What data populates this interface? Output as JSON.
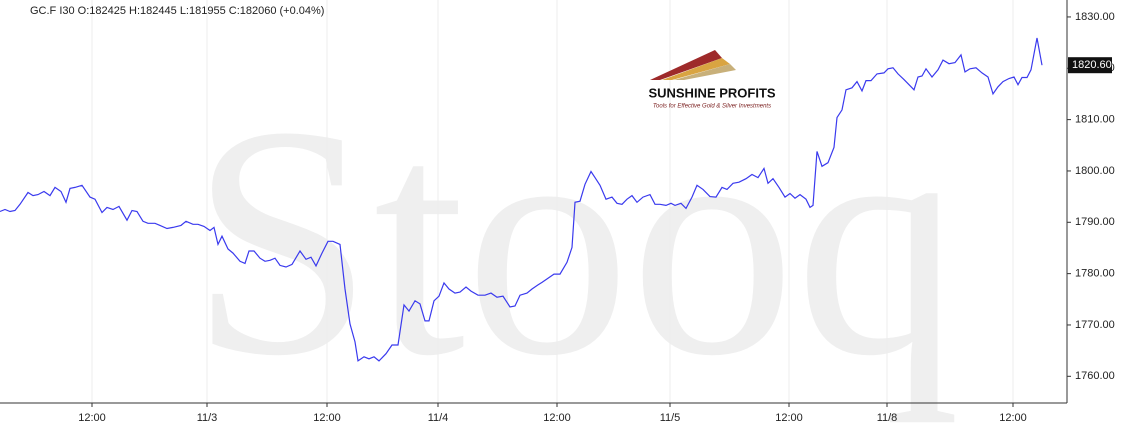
{
  "chart_data": {
    "type": "line",
    "title": "GC.F  I30  O:182425  H:182445  L:181955  C:182060  (+0.04%)",
    "watermark": "Stooq",
    "logo": {
      "name": "SUNSHINE PROFITS",
      "tagline": "Tools for Effective Gold & Silver Investments"
    },
    "last_price_label": "1820.60",
    "grid": true,
    "xlim": [
      0,
      1067
    ],
    "ylim": [
      1754.8,
      1833.3
    ],
    "xticks": [
      {
        "value": 92,
        "label": "12:00"
      },
      {
        "value": 207,
        "label": "11/3"
      },
      {
        "value": 327,
        "label": "12:00"
      },
      {
        "value": 438,
        "label": "11/4"
      },
      {
        "value": 557,
        "label": "12:00"
      },
      {
        "value": 670,
        "label": "11/5"
      },
      {
        "value": 789,
        "label": "12:00"
      },
      {
        "value": 887,
        "label": "11/8"
      },
      {
        "value": 1013,
        "label": "12:00"
      }
    ],
    "yticks": [
      {
        "value": 1760,
        "label": "1760.00"
      },
      {
        "value": 1770,
        "label": "1770.00"
      },
      {
        "value": 1780,
        "label": "1780.00"
      },
      {
        "value": 1790,
        "label": "1790.00"
      },
      {
        "value": 1800,
        "label": "1800.00"
      },
      {
        "value": 1810,
        "label": "1810.00"
      },
      {
        "value": 1820,
        "label": "1820.00"
      },
      {
        "value": 1830,
        "label": "1830.00"
      }
    ],
    "series": [
      {
        "name": "GC.F",
        "color": "#3a3aee",
        "x": [
          0,
          5,
          10,
          15,
          20,
          28,
          33,
          38,
          44,
          50,
          55,
          61,
          66,
          70,
          75,
          82,
          90,
          95,
          102,
          107,
          113,
          119,
          127,
          132,
          137,
          143,
          148,
          155,
          160,
          167,
          173,
          181,
          186,
          193,
          198,
          204,
          210,
          214,
          218,
          222,
          228,
          233,
          240,
          245,
          249,
          254,
          260,
          265,
          270,
          275,
          280,
          286,
          292,
          300,
          306,
          311,
          316,
          322,
          328,
          333,
          340,
          345,
          350,
          355,
          358,
          364,
          369,
          374,
          379,
          386,
          392,
          398,
          404,
          409,
          415,
          420,
          425,
          429,
          434,
          439,
          444,
          449,
          455,
          460,
          466,
          471,
          478,
          485,
          491,
          497,
          503,
          510,
          515,
          520,
          527,
          532,
          538,
          542,
          548,
          554,
          560,
          567,
          572,
          575,
          580,
          585,
          591,
          595,
          600,
          606,
          612,
          617,
          622,
          627,
          632,
          637,
          643,
          650,
          655,
          660,
          666,
          671,
          675,
          681,
          686,
          692,
          697,
          703,
          710,
          716,
          722,
          727,
          733,
          739,
          746,
          752,
          758,
          764,
          768,
          773,
          779,
          785,
          790,
          795,
          800,
          806,
          810,
          813,
          817,
          822,
          828,
          834,
          837,
          842,
          846,
          852,
          857,
          862,
          866,
          871,
          877,
          884,
          888,
          893,
          898,
          904,
          910,
          914,
          918,
          922,
          926,
          932,
          938,
          943,
          949,
          955,
          961,
          965,
          970,
          976,
          982,
          988,
          993,
          998,
          1003,
          1009,
          1014,
          1018,
          1022,
          1027,
          1031,
          1037,
          1042
        ],
        "values": [
          1792.1,
          1792.5,
          1792.1,
          1792.3,
          1793.5,
          1795.8,
          1795.2,
          1795.4,
          1796.0,
          1795.2,
          1796.8,
          1796.0,
          1793.9,
          1796.6,
          1796.8,
          1797.2,
          1794.9,
          1794.5,
          1791.9,
          1792.9,
          1792.5,
          1793.1,
          1790.4,
          1792.3,
          1792.1,
          1790.2,
          1789.8,
          1789.8,
          1789.4,
          1788.8,
          1789.0,
          1789.4,
          1790.2,
          1789.6,
          1789.6,
          1789.2,
          1788.4,
          1789.0,
          1785.7,
          1787.3,
          1784.8,
          1784.0,
          1782.4,
          1782.0,
          1784.4,
          1784.4,
          1783.0,
          1782.4,
          1782.6,
          1783.0,
          1781.6,
          1781.3,
          1781.8,
          1784.4,
          1782.8,
          1783.2,
          1781.5,
          1784.0,
          1786.3,
          1786.3,
          1785.7,
          1777.0,
          1770.2,
          1766.7,
          1763.0,
          1763.8,
          1763.4,
          1763.8,
          1763.0,
          1764.4,
          1766.1,
          1766.1,
          1773.9,
          1772.7,
          1774.7,
          1774.1,
          1770.8,
          1770.8,
          1774.7,
          1775.6,
          1778.2,
          1777.0,
          1776.2,
          1776.4,
          1777.4,
          1776.6,
          1775.8,
          1775.8,
          1776.2,
          1775.4,
          1775.6,
          1773.5,
          1773.7,
          1775.8,
          1776.2,
          1777.0,
          1777.8,
          1778.3,
          1779.1,
          1779.9,
          1779.9,
          1782.2,
          1785.1,
          1793.9,
          1794.1,
          1797.4,
          1799.9,
          1798.7,
          1797.2,
          1794.5,
          1794.9,
          1793.7,
          1793.5,
          1794.5,
          1795.2,
          1793.9,
          1794.9,
          1795.4,
          1793.5,
          1793.5,
          1793.3,
          1793.7,
          1793.3,
          1793.7,
          1792.7,
          1794.9,
          1797.2,
          1796.4,
          1795.0,
          1794.9,
          1796.8,
          1796.4,
          1797.6,
          1797.8,
          1798.5,
          1799.3,
          1798.7,
          1800.5,
          1797.6,
          1798.5,
          1796.8,
          1794.9,
          1795.6,
          1794.7,
          1795.4,
          1794.5,
          1792.9,
          1793.3,
          1803.8,
          1800.9,
          1801.6,
          1804.6,
          1810.4,
          1811.9,
          1815.8,
          1816.2,
          1817.4,
          1815.6,
          1817.6,
          1817.6,
          1818.9,
          1819.1,
          1819.9,
          1820.1,
          1818.9,
          1817.8,
          1816.6,
          1815.8,
          1818.3,
          1818.5,
          1819.9,
          1818.3,
          1819.7,
          1821.6,
          1820.9,
          1821.1,
          1822.6,
          1819.3,
          1819.9,
          1820.1,
          1819.1,
          1818.3,
          1815.0,
          1816.4,
          1817.4,
          1818.0,
          1818.3,
          1816.8,
          1818.2,
          1818.2,
          1819.7,
          1825.9,
          1820.6
        ]
      }
    ]
  }
}
